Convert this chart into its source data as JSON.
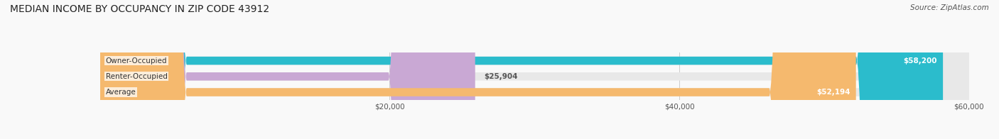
{
  "title": "MEDIAN INCOME BY OCCUPANCY IN ZIP CODE 43912",
  "source": "Source: ZipAtlas.com",
  "categories": [
    "Owner-Occupied",
    "Renter-Occupied",
    "Average"
  ],
  "values": [
    58200,
    25904,
    52194
  ],
  "bar_colors": [
    "#2bbccc",
    "#c9a8d4",
    "#f5b96e"
  ],
  "bar_bg_color": "#e8e8e8",
  "value_labels": [
    "$58,200",
    "$25,904",
    "$52,194"
  ],
  "xlim": [
    0,
    60000
  ],
  "xticks": [
    20000,
    40000,
    60000
  ],
  "xtick_labels": [
    "$20,000",
    "$40,000",
    "$60,000"
  ],
  "background_color": "#f9f9f9",
  "title_fontsize": 10,
  "source_fontsize": 7.5,
  "bar_height": 0.52,
  "figsize": [
    14.06,
    1.96
  ],
  "dpi": 100
}
